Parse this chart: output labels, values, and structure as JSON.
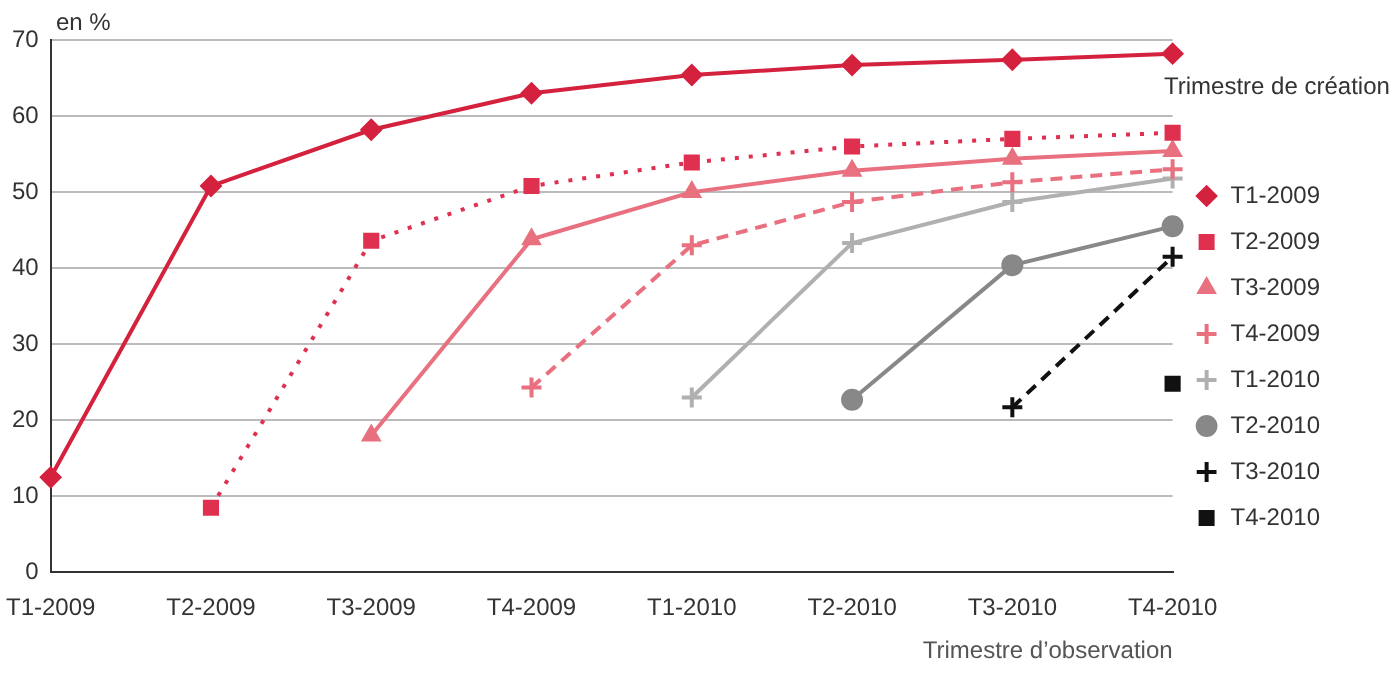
{
  "chart_data": {
    "type": "line",
    "ylabel": "en %",
    "xlabel": "Trimestre d’observation",
    "legend_title": "Trimestre de création",
    "legend": "right",
    "grid": "y",
    "categories": [
      "T1-2009",
      "T2-2009",
      "T3-2009",
      "T4-2009",
      "T1-2010",
      "T2-2010",
      "T3-2010",
      "T4-2010"
    ],
    "ylim": [
      0,
      70
    ],
    "yticks": [
      0,
      10,
      20,
      30,
      40,
      50,
      60,
      70
    ],
    "series": [
      {
        "name": "T1-2009",
        "color": "#d4213d",
        "marker": "diamond",
        "line_style": "solid",
        "values": [
          12.5,
          50.8,
          58.2,
          63,
          65.4,
          66.7,
          67.4,
          68.2
        ]
      },
      {
        "name": "T2-2009",
        "color": "#e03050",
        "marker": "square",
        "line_style": "dotted",
        "values": [
          null,
          8.5,
          43.6,
          50.8,
          53.9,
          56,
          57,
          57.8
        ]
      },
      {
        "name": "T3-2009",
        "color": "#e8707f",
        "marker": "triangle",
        "line_style": "solid",
        "values": [
          null,
          null,
          18,
          43.8,
          50,
          52.8,
          54.4,
          55.4
        ]
      },
      {
        "name": "T4-2009",
        "color": "#e8707f",
        "marker": "cross",
        "line_style": "dashed",
        "values": [
          null,
          null,
          null,
          24.3,
          43,
          48.7,
          51.3,
          53
        ]
      },
      {
        "name": "T1-2010",
        "color": "#b0b0b0",
        "marker": "cross",
        "line_style": "solid",
        "values": [
          null,
          null,
          null,
          null,
          23,
          43.3,
          48.7,
          51.8
        ]
      },
      {
        "name": "T2-2010",
        "color": "#888888",
        "marker": "circle",
        "line_style": "solid",
        "values": [
          null,
          null,
          null,
          null,
          null,
          22.7,
          40.4,
          45.5
        ]
      },
      {
        "name": "T3-2010",
        "color": "#111111",
        "marker": "cross",
        "line_style": "dashed",
        "values": [
          null,
          null,
          null,
          null,
          null,
          null,
          21.7,
          41.5
        ]
      },
      {
        "name": "T4-2010",
        "color": "#111111",
        "marker": "square",
        "line_style": "solid",
        "values": [
          null,
          null,
          null,
          null,
          null,
          null,
          null,
          24.8
        ]
      }
    ]
  }
}
